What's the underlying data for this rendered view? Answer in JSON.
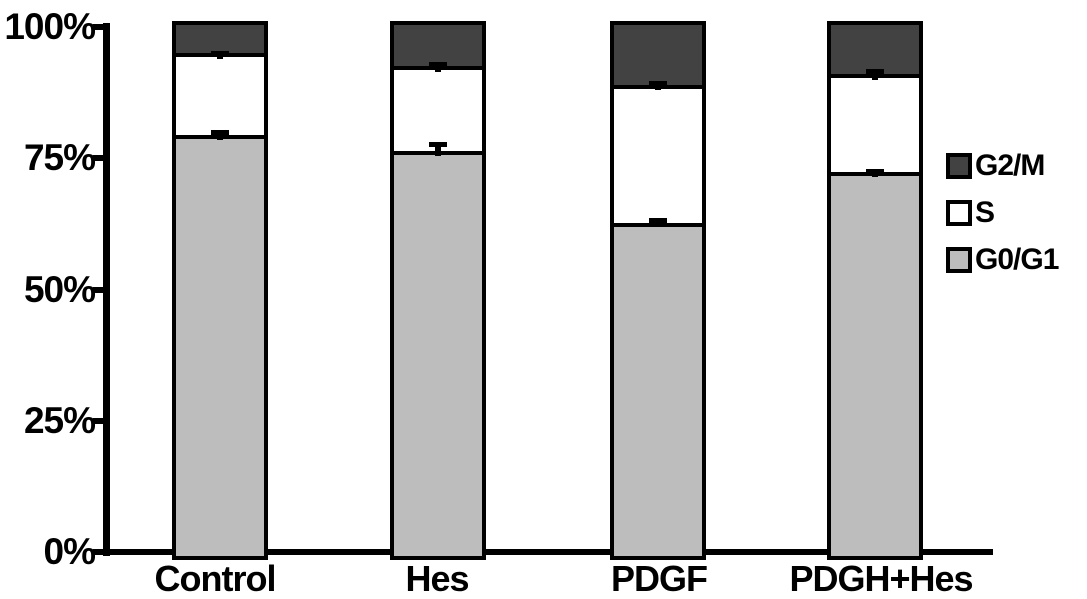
{
  "chart_data": {
    "type": "bar",
    "stacked": true,
    "orientation": "vertical",
    "title": "",
    "xlabel": "",
    "ylabel": "",
    "ylim": [
      0,
      100
    ],
    "grid": false,
    "legend_position": "right",
    "categories": [
      "Control",
      "Hes",
      "PDGF",
      "PDGH+Hes"
    ],
    "series": [
      {
        "name": "G0/G1",
        "color": "#bdbdbd",
        "values": [
          78.5,
          75.5,
          62.0,
          71.5
        ],
        "error_up": [
          1.0,
          1.8,
          0.8,
          0.6
        ]
      },
      {
        "name": "S",
        "color": "#ffffff",
        "values": [
          15.5,
          16.0,
          26.0,
          18.5
        ],
        "error_up": [
          0.6,
          0.9,
          0.8,
          1.1
        ]
      },
      {
        "name": "G2/M",
        "color": "#424242",
        "values": [
          6.0,
          8.5,
          12.0,
          10.0
        ],
        "error_up": [
          0,
          0,
          0,
          0
        ]
      }
    ],
    "y_ticks": [
      {
        "label": "0%",
        "value": 0
      },
      {
        "label": "25%",
        "value": 25
      },
      {
        "label": "50%",
        "value": 50
      },
      {
        "label": "75%",
        "value": 75
      },
      {
        "label": "100%",
        "value": 100
      }
    ],
    "legend": [
      {
        "label": "G2/M",
        "series": "G2/M"
      },
      {
        "label": "S",
        "series": "S"
      },
      {
        "label": "G0/G1",
        "series": "G0/G1"
      }
    ],
    "colors": {
      "outline": "#000000",
      "background": "#ffffff"
    }
  }
}
